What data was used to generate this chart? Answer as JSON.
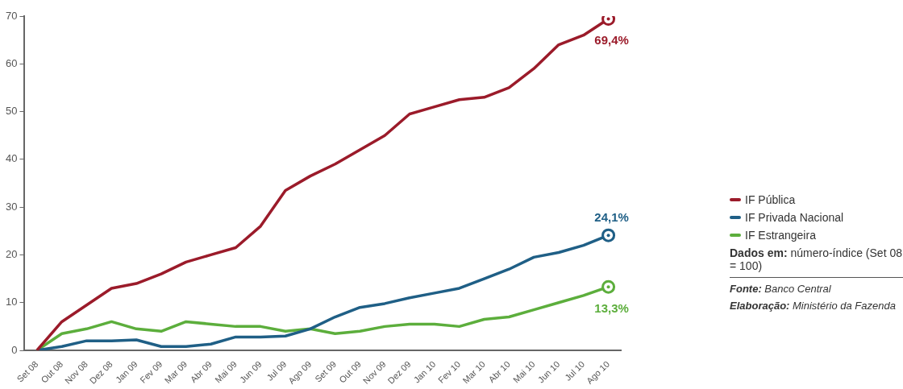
{
  "chart_data": {
    "type": "line",
    "categories": [
      "Set 08",
      "Out 08",
      "Nov 08",
      "Dez 08",
      "Jan 09",
      "Fev 09",
      "Mar 09",
      "Abr 09",
      "Mai 09",
      "Jun 09",
      "Jul 09",
      "Ago 09",
      "Set 09",
      "Out 09",
      "Nov 09",
      "Dez 09",
      "Jan 10",
      "Fev 10",
      "Mar 10",
      "Abr 10",
      "Mai 10",
      "Jun 10",
      "Jul 10",
      "Ago 10"
    ],
    "series": [
      {
        "name": "IF Pública",
        "color": "#9b1b2a",
        "values": [
          0,
          6,
          9.5,
          13,
          14,
          16,
          18.5,
          20,
          21.5,
          26,
          33.5,
          36.5,
          39,
          42,
          45,
          49.5,
          51,
          52.5,
          53,
          55,
          59,
          64,
          66,
          69.4
        ],
        "value_labels": [
          null,
          null,
          null,
          null,
          null,
          null,
          null,
          null,
          null,
          null,
          null,
          null,
          null,
          null,
          null,
          null,
          null,
          null,
          null,
          null,
          null,
          null,
          null,
          "69,4%"
        ]
      },
      {
        "name": "IF Privada Nacional",
        "color": "#1f5f86",
        "values": [
          0,
          0.8,
          2,
          2,
          2.2,
          0.8,
          0.8,
          1.3,
          2.8,
          2.8,
          3,
          4.5,
          7,
          9,
          9.8,
          11,
          12,
          13,
          15,
          17,
          19.5,
          20.5,
          22,
          24.1
        ],
        "value_labels": [
          null,
          null,
          null,
          null,
          null,
          null,
          null,
          null,
          null,
          null,
          null,
          null,
          null,
          null,
          null,
          null,
          null,
          null,
          null,
          null,
          null,
          null,
          null,
          "24,1%"
        ]
      },
      {
        "name": "IF Estrangeira",
        "color": "#5cae3c",
        "values": [
          0,
          3.5,
          4.5,
          6,
          4.5,
          4,
          6,
          5.5,
          5,
          5,
          4,
          4.5,
          3.5,
          4,
          5,
          5.5,
          5.5,
          5,
          6.5,
          7,
          8.5,
          10,
          11.5,
          13.3
        ],
        "value_labels": [
          null,
          null,
          null,
          null,
          null,
          null,
          null,
          null,
          null,
          null,
          null,
          null,
          null,
          null,
          null,
          null,
          null,
          null,
          null,
          null,
          null,
          null,
          null,
          "13,3%"
        ]
      }
    ],
    "ylim": [
      0,
      70
    ],
    "yticks": [
      0,
      10,
      20,
      30,
      40,
      50,
      60,
      70
    ],
    "grid": false,
    "legend": "right",
    "marker": "none",
    "annotations": [
      "Dados em: número-índice (Set 08 = 100)",
      "Fonte: Banco Central",
      "Elaboração: Ministério da Fazenda"
    ]
  }
}
